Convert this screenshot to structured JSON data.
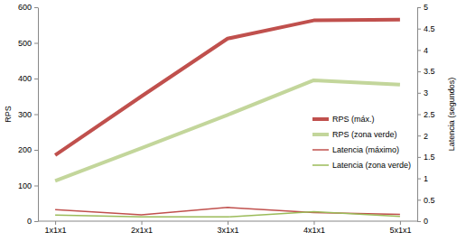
{
  "chart_data": {
    "type": "line",
    "categories": [
      "1x1x1",
      "2x1x1",
      "3x1x1",
      "4x1x1",
      "5x1x1"
    ],
    "y_label": "RPS",
    "y2_label": "Latencia (segundos)",
    "ylim": [
      0,
      600
    ],
    "yticks": [
      0,
      100,
      200,
      300,
      400,
      500,
      600
    ],
    "y2lim": [
      0,
      5
    ],
    "y2ticks": [
      0,
      0.5,
      1,
      1.5,
      2,
      2.5,
      3,
      3.5,
      4,
      4.5,
      5
    ],
    "grid": false,
    "legend": "right",
    "series": [
      {
        "name": "RPS (máx.)",
        "color": "#c0504d",
        "values": [
          185,
          350,
          512,
          563,
          565
        ]
      },
      {
        "name": "RPS (zona verde)",
        "color": "#c3d69b",
        "values": [
          113,
          205,
          298,
          395,
          383
        ]
      },
      {
        "name": "Latencia (máximo)",
        "color": "#c0504d",
        "axis": "y2",
        "values": [
          0.27,
          0.15,
          0.32,
          0.2,
          0.16
        ]
      },
      {
        "name": "Latencia (zona verde)",
        "color": "#9bbb59",
        "axis": "y2",
        "values": [
          0.14,
          0.1,
          0.1,
          0.22,
          0.11
        ]
      }
    ]
  }
}
